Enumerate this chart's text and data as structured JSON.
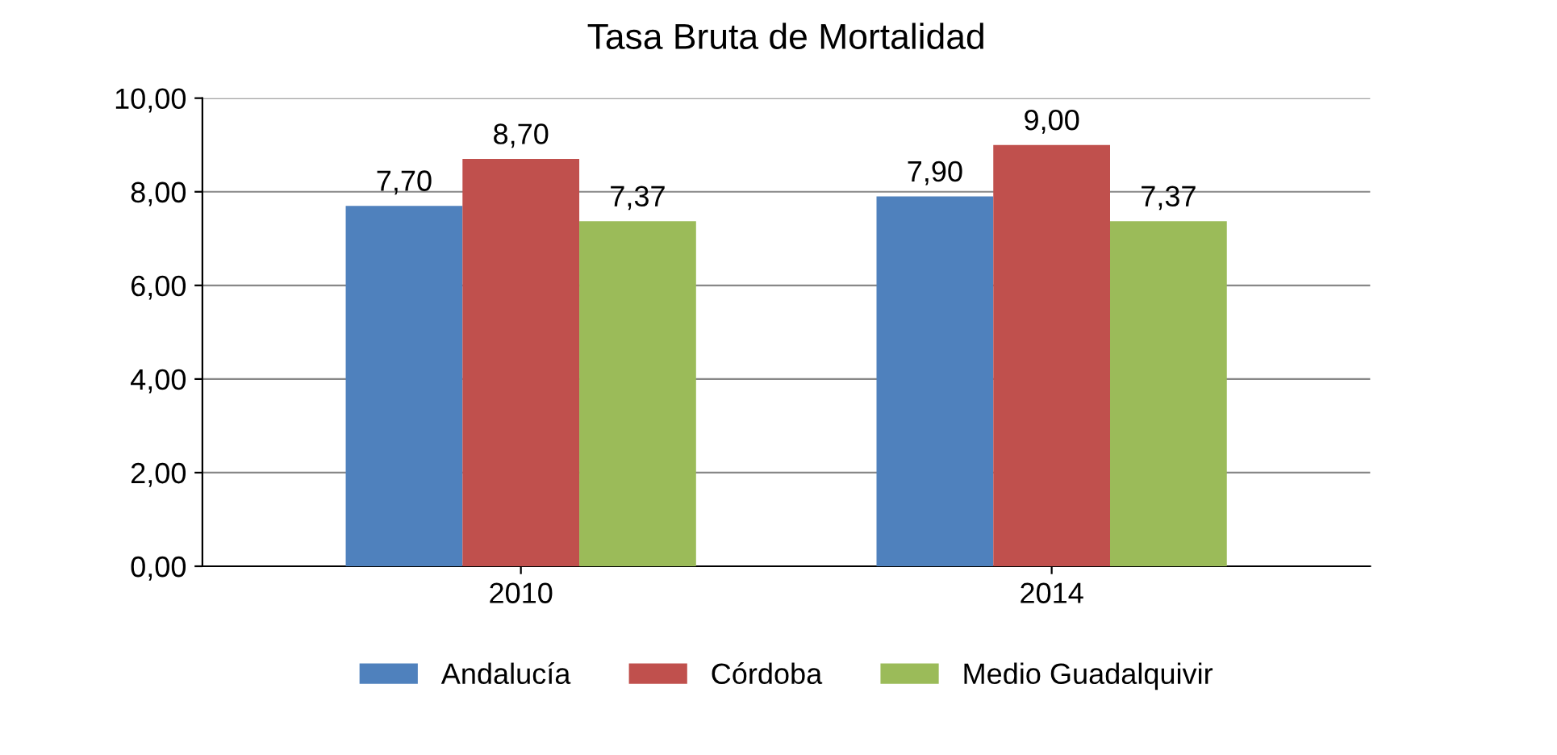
{
  "chart_data": {
    "type": "bar",
    "title": "Tasa Bruta de Mortalidad",
    "categories": [
      "2010",
      "2014"
    ],
    "series": [
      {
        "name": "Andalucía",
        "color": "#4f81bd",
        "values": [
          7.7,
          7.9
        ],
        "value_labels": [
          "7,70",
          "7,90"
        ]
      },
      {
        "name": "Córdoba",
        "color": "#c0504d",
        "values": [
          8.7,
          9.0
        ],
        "value_labels": [
          "8,70",
          "9,00"
        ]
      },
      {
        "name": "Medio Guadalquivir",
        "color": "#9bbb59",
        "values": [
          7.37,
          7.37
        ],
        "value_labels": [
          "7,37",
          "7,37"
        ]
      }
    ],
    "ylim": [
      0,
      10
    ],
    "yticks": [
      {
        "value": 0,
        "label": "0,00"
      },
      {
        "value": 2,
        "label": "2,00"
      },
      {
        "value": 4,
        "label": "4,00"
      },
      {
        "value": 6,
        "label": "6,00"
      },
      {
        "value": 8,
        "label": "8,00"
      },
      {
        "value": 10,
        "label": "10,00"
      }
    ],
    "grid": "y",
    "legend": "bottom"
  }
}
